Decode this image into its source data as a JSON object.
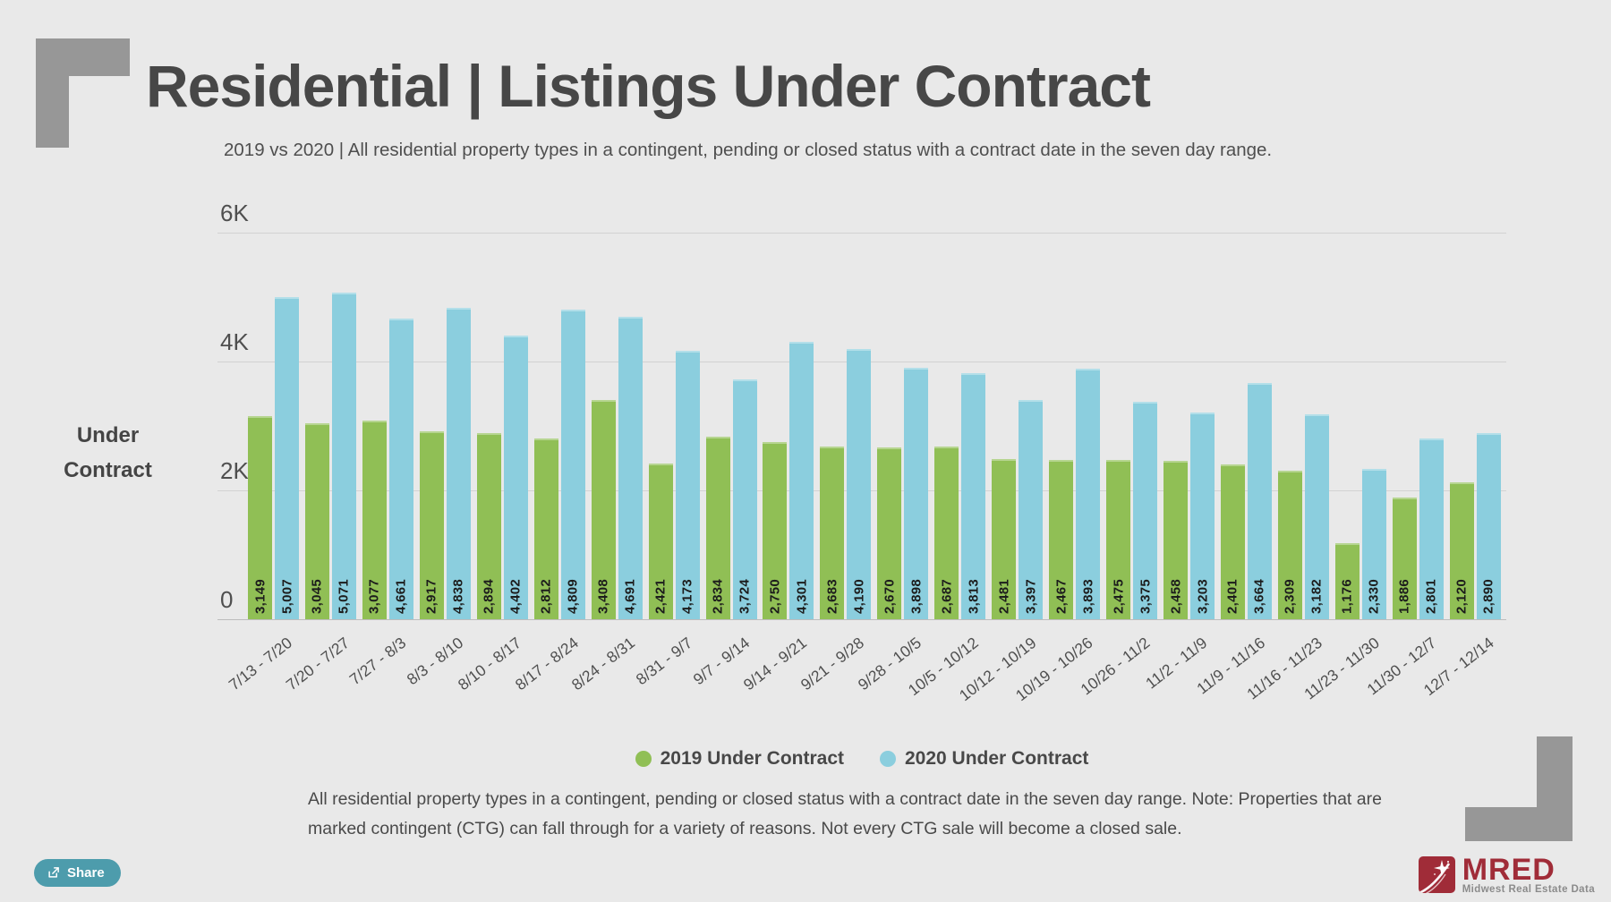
{
  "header": {
    "title": "Residential | Listings Under Contract",
    "subtitle": "2019 vs 2020 | All residential property types in a contingent, pending or closed status with a contract date in the seven day range."
  },
  "chart_data": {
    "type": "bar",
    "y_axis_title": "Under Contract",
    "ylim": [
      0,
      6000
    ],
    "yticks": [
      {
        "value": 0,
        "label": "0"
      },
      {
        "value": 2000,
        "label": "2K"
      },
      {
        "value": 4000,
        "label": "4K"
      },
      {
        "value": 6000,
        "label": "6K"
      }
    ],
    "grid": true,
    "legend_position": "bottom",
    "categories": [
      "7/13 - 7/20",
      "7/20 - 7/27",
      "7/27 - 8/3",
      "8/3 - 8/10",
      "8/10 - 8/17",
      "8/17 - 8/24",
      "8/24 - 8/31",
      "8/31 - 9/7",
      "9/7 - 9/14",
      "9/14 - 9/21",
      "9/21 - 9/28",
      "9/28 - 10/5",
      "10/5 - 10/12",
      "10/12 - 10/19",
      "10/19 - 10/26",
      "10/26 - 11/2",
      "11/2 - 11/9",
      "11/9 - 11/16",
      "11/16 - 11/23",
      "11/23 - 11/30",
      "11/30 - 12/7",
      "12/7 - 12/14"
    ],
    "series": [
      {
        "name": "2019 Under Contract",
        "color": "#90bf55",
        "values": [
          3149,
          3045,
          3077,
          2917,
          2894,
          2812,
          3408,
          2421,
          2834,
          2750,
          2683,
          2670,
          2687,
          2481,
          2467,
          2475,
          2458,
          2401,
          2309,
          1176,
          1886,
          2120
        ]
      },
      {
        "name": "2020 Under Contract",
        "color": "#8bcede",
        "values": [
          5007,
          5071,
          4661,
          4838,
          4402,
          4809,
          4691,
          4173,
          3724,
          4301,
          4190,
          3898,
          3813,
          3397,
          3893,
          3375,
          3203,
          3664,
          3182,
          2330,
          2801,
          2890
        ]
      }
    ]
  },
  "footnote": {
    "lines": [
      "All residential property types in a contingent, pending or closed status with a contract date in the seven day range. Note: Properties that are",
      "marked contingent (CTG) can fall through for a variety of reasons. Not every CTG sale will become a closed sale."
    ]
  },
  "share": {
    "label": "Share"
  },
  "logo": {
    "name": "MRED",
    "tagline": "Midwest Real Estate Data"
  },
  "colors": {
    "background": "#e9e9e9",
    "bar_2019_green": "#90bf55",
    "bar_2020_blue": "#8bcede",
    "corner_gray": "#979797",
    "title_text": "#474747",
    "share_teal": "#4d9cac",
    "mred_red": "#a02c38"
  }
}
